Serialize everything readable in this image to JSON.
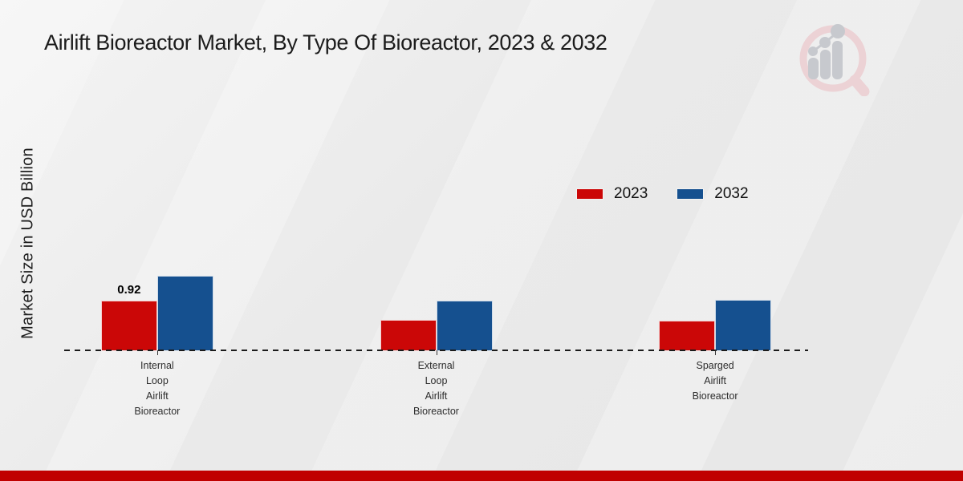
{
  "title": "Airlift Bioreactor Market, By Type Of Bioreactor, 2023 & 2032",
  "y_axis_label": "Market Size in USD Billion",
  "icons": {
    "logo": "magnifier-bar-chart-logo"
  },
  "colors": {
    "series_2023": "#cb0707",
    "series_2032": "#15508f",
    "footer_strip": "#c00000",
    "baseline": "#1b1b1b",
    "logo_pink": "#ecd2d5",
    "logo_gray": "#c7c9ce"
  },
  "legend": {
    "items": [
      {
        "label": "2023",
        "color": "#cb0707"
      },
      {
        "label": "2032",
        "color": "#15508f"
      }
    ]
  },
  "chart_data": {
    "type": "bar",
    "title": "Airlift Bioreactor Market, By Type Of Bioreactor, 2023 & 2032",
    "xlabel": "",
    "ylabel": "Market Size in USD Billion",
    "categories": [
      "Internal Loop Airlift Bioreactor",
      "External Loop Airlift Bioreactor",
      "Sparged Airlift Bioreactor"
    ],
    "series": [
      {
        "name": "2023",
        "color": "#cb0707",
        "values": [
          0.92,
          0.56,
          0.55
        ],
        "data_labels": [
          "0.92",
          "",
          ""
        ]
      },
      {
        "name": "2032",
        "color": "#15508f",
        "values": [
          1.38,
          0.92,
          0.93
        ],
        "data_labels": [
          "",
          "",
          ""
        ]
      }
    ],
    "ylim": [
      0,
      5
    ],
    "grid": false,
    "legend_position": "upper-right-of-plot",
    "baseline_style": "dashed",
    "y_ticks_shown": false
  }
}
